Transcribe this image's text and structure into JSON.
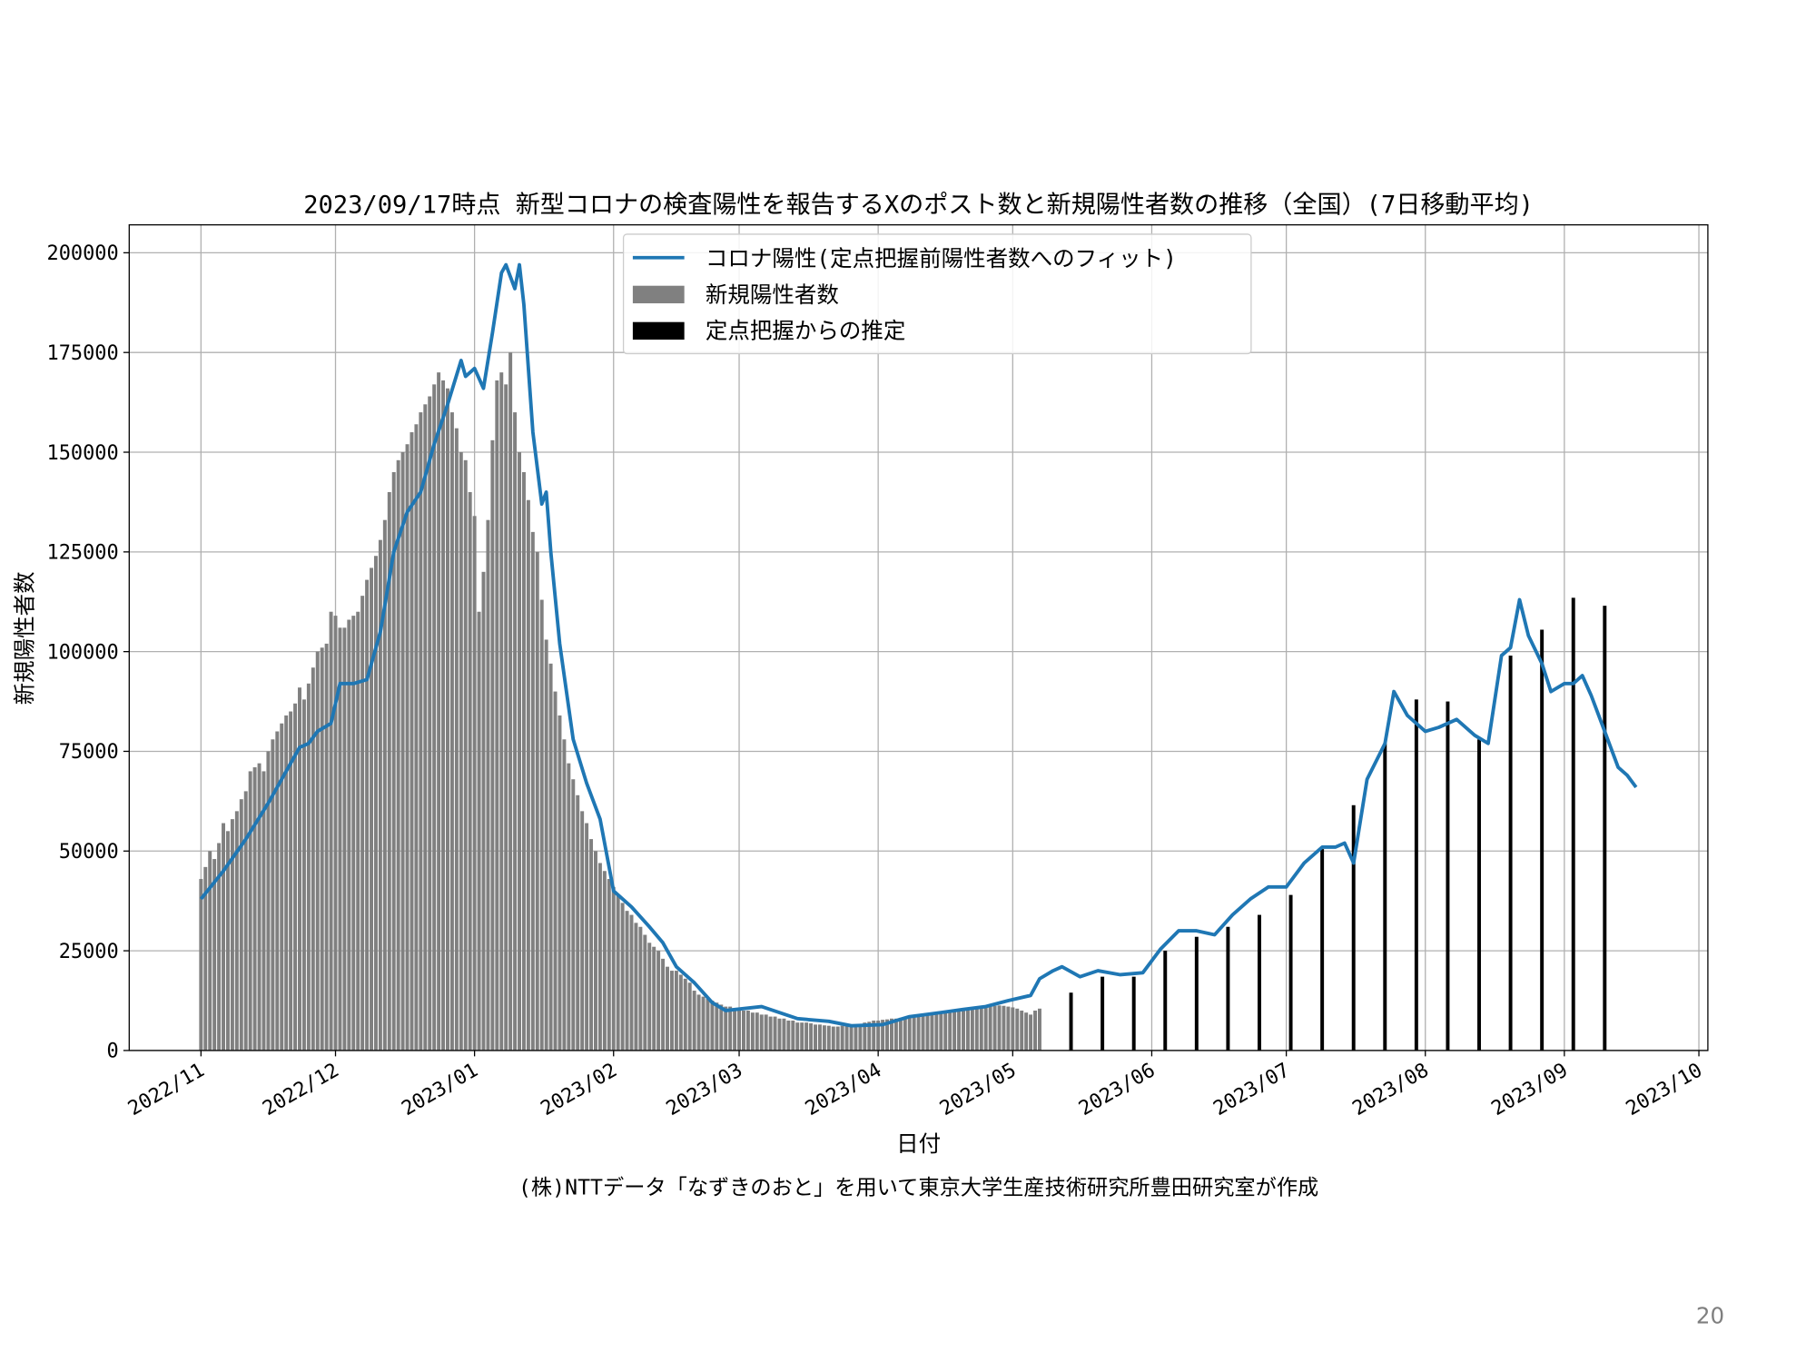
{
  "chart_data": {
    "type": "combo",
    "title": "2023/09/17時点 新型コロナの検査陽性を報告するXのポスト数と新規陽性者数の推移（全国）(7日移動平均)",
    "xlabel": "日付",
    "ylabel": "新規陽性者数",
    "caption": "(株)NTTデータ「なずきのおと」を用いて東京大学生産技術研究所豊田研究室が作成",
    "page_number": "20",
    "xlim": [
      -16,
      336
    ],
    "ylim": [
      0,
      207000
    ],
    "xticks": [
      {
        "value": 0,
        "label": "2022/11"
      },
      {
        "value": 30,
        "label": "2022/12"
      },
      {
        "value": 61,
        "label": "2023/01"
      },
      {
        "value": 92,
        "label": "2023/02"
      },
      {
        "value": 120,
        "label": "2023/03"
      },
      {
        "value": 151,
        "label": "2023/04"
      },
      {
        "value": 181,
        "label": "2023/05"
      },
      {
        "value": 212,
        "label": "2023/06"
      },
      {
        "value": 242,
        "label": "2023/07"
      },
      {
        "value": 273,
        "label": "2023/08"
      },
      {
        "value": 304,
        "label": "2023/09"
      },
      {
        "value": 334,
        "label": "2023/10"
      }
    ],
    "yticks": [
      0,
      25000,
      50000,
      75000,
      100000,
      125000,
      150000,
      175000,
      200000
    ],
    "grid": true,
    "legend": "upper center",
    "series": [
      {
        "name": "コロナ陽性(定点把握前陽性者数へのフィット)",
        "type": "line",
        "color": "#1f77b4",
        "x": [
          0,
          5,
          10,
          15,
          18,
          22,
          24,
          26,
          29,
          31,
          34,
          37,
          40,
          43,
          46,
          49,
          52,
          55,
          58,
          59,
          61,
          63,
          65,
          67,
          68,
          70,
          71,
          72,
          74,
          76,
          77,
          78,
          80,
          83,
          86,
          89,
          92,
          96,
          100,
          103,
          106,
          110,
          114,
          117,
          125,
          133,
          140,
          145,
          152,
          158,
          165,
          170,
          175,
          180,
          185,
          187,
          190,
          192,
          196,
          200,
          205,
          210,
          214,
          218,
          222,
          226,
          230,
          234,
          238,
          242,
          246,
          250,
          253,
          255,
          257,
          260,
          264,
          266,
          269,
          273,
          276,
          280,
          284,
          287,
          290,
          292,
          294,
          296,
          299,
          301,
          304,
          306,
          308,
          310,
          313,
          316,
          318,
          320
        ],
        "values": [
          38000,
          45000,
          53000,
          62000,
          68000,
          76000,
          77000,
          80000,
          82000,
          92000,
          92000,
          93000,
          105000,
          125000,
          135000,
          140000,
          152000,
          162000,
          173000,
          169000,
          171000,
          166000,
          180000,
          195000,
          197000,
          191000,
          197000,
          187000,
          155000,
          137000,
          140000,
          125000,
          102000,
          78000,
          67000,
          58000,
          40000,
          36000,
          31000,
          27000,
          21000,
          17000,
          12000,
          10000,
          11000,
          8000,
          7300,
          6200,
          6500,
          8500,
          9500,
          10300,
          11000,
          12500,
          13800,
          18000,
          20000,
          21000,
          18500,
          20000,
          19000,
          19500,
          25500,
          30000,
          30000,
          29000,
          34000,
          38000,
          41000,
          41000,
          47000,
          51000,
          51000,
          52000,
          47000,
          68000,
          77000,
          90000,
          84000,
          80000,
          81000,
          83000,
          79000,
          77000,
          99000,
          101000,
          113000,
          104000,
          97000,
          90000,
          92000,
          92000,
          94000,
          89000,
          80000,
          71000,
          69000,
          66000
        ]
      },
      {
        "name": "新規陽性者数",
        "type": "bar",
        "color": "#808080",
        "x": [
          0,
          1,
          2,
          3,
          4,
          5,
          6,
          7,
          8,
          9,
          10,
          11,
          12,
          13,
          14,
          15,
          16,
          17,
          18,
          19,
          20,
          21,
          22,
          23,
          24,
          25,
          26,
          27,
          28,
          29,
          30,
          31,
          32,
          33,
          34,
          35,
          36,
          37,
          38,
          39,
          40,
          41,
          42,
          43,
          44,
          45,
          46,
          47,
          48,
          49,
          50,
          51,
          52,
          53,
          54,
          55,
          56,
          57,
          58,
          59,
          60,
          61,
          62,
          63,
          64,
          65,
          66,
          67,
          68,
          69,
          70,
          71,
          72,
          73,
          74,
          75,
          76,
          77,
          78,
          79,
          80,
          81,
          82,
          83,
          84,
          85,
          86,
          87,
          88,
          89,
          90,
          91,
          92,
          93,
          94,
          95,
          96,
          97,
          98,
          99,
          100,
          101,
          102,
          103,
          104,
          105,
          106,
          107,
          108,
          109,
          110,
          111,
          112,
          113,
          114,
          115,
          116,
          117,
          118,
          119,
          120,
          121,
          122,
          123,
          124,
          125,
          126,
          127,
          128,
          129,
          130,
          131,
          132,
          133,
          134,
          135,
          136,
          137,
          138,
          139,
          140,
          141,
          142,
          143,
          144,
          145,
          146,
          147,
          148,
          149,
          150,
          151,
          152,
          153,
          154,
          155,
          156,
          157,
          158,
          159,
          160,
          161,
          162,
          163,
          164,
          165,
          166,
          167,
          168,
          169,
          170,
          171,
          172,
          173,
          174,
          175,
          176,
          177,
          178,
          179,
          180,
          181,
          182,
          183,
          184,
          185,
          186,
          187
        ],
        "values": [
          43000,
          46000,
          50000,
          48000,
          52000,
          57000,
          55000,
          58000,
          60000,
          63000,
          65000,
          70000,
          71000,
          72000,
          70000,
          75000,
          78000,
          80000,
          82000,
          84000,
          85000,
          87000,
          91000,
          88000,
          92000,
          96000,
          100000,
          101000,
          102000,
          110000,
          109000,
          106000,
          106000,
          108000,
          109000,
          110000,
          114000,
          118000,
          121000,
          124000,
          128000,
          133000,
          140000,
          145000,
          148000,
          150000,
          152000,
          155000,
          157000,
          160000,
          162000,
          164000,
          167000,
          170000,
          168000,
          166000,
          160000,
          156000,
          150000,
          148000,
          140000,
          134000,
          110000,
          120000,
          133000,
          153000,
          168000,
          170000,
          167000,
          175000,
          160000,
          150000,
          145000,
          138000,
          130000,
          125000,
          113000,
          103000,
          97000,
          90000,
          84000,
          78000,
          72000,
          68000,
          64000,
          60000,
          57000,
          53000,
          50000,
          47000,
          45000,
          43000,
          41000,
          39000,
          37000,
          35000,
          34000,
          32000,
          31000,
          29000,
          27000,
          26000,
          25000,
          23000,
          21000,
          20000,
          20000,
          19000,
          18000,
          17000,
          15000,
          14000,
          13500,
          13000,
          12500,
          12000,
          11500,
          11000,
          11000,
          10500,
          10500,
          10000,
          10000,
          9500,
          9500,
          9000,
          9000,
          8500,
          8500,
          8000,
          8000,
          7500,
          7500,
          7000,
          7000,
          7000,
          6800,
          6500,
          6500,
          6300,
          6200,
          6000,
          6000,
          6200,
          6300,
          6500,
          6500,
          6700,
          7000,
          7200,
          7500,
          7500,
          7700,
          7800,
          8000,
          8000,
          8200,
          8300,
          8500,
          8500,
          8700,
          8800,
          9000,
          9000,
          9200,
          9300,
          9500,
          9600,
          9800,
          10000,
          10000,
          10200,
          10300,
          10500,
          10600,
          10800,
          11000,
          11200,
          11300,
          11200,
          11000,
          10800,
          10500,
          10000,
          9500,
          9000,
          10000,
          10500
        ]
      },
      {
        "name": "定点把握からの推定",
        "type": "bar",
        "color": "#000000",
        "x": [
          194,
          201,
          208,
          215,
          222,
          229,
          236,
          243,
          250,
          257,
          264,
          271,
          278,
          285,
          292,
          299,
          306,
          313
        ],
        "values": [
          14500,
          18500,
          18500,
          25000,
          28500,
          31000,
          34000,
          39000,
          50500,
          61500,
          77000,
          88000,
          87500,
          78000,
          99000,
          105500,
          113500,
          111500
        ]
      }
    ]
  }
}
